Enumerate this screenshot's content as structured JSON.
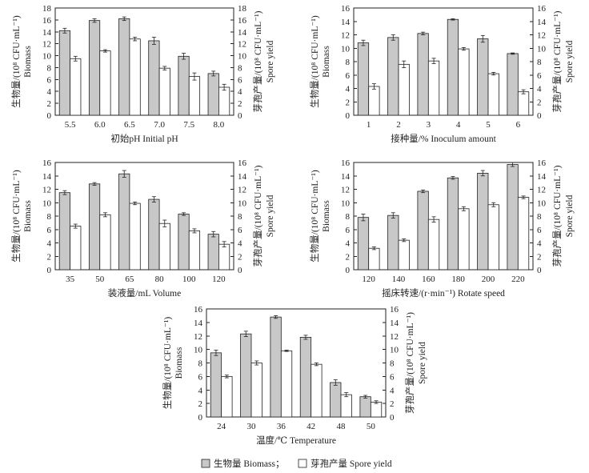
{
  "chart_data": [
    {
      "type": "bar",
      "categories": [
        "5.5",
        "6.0",
        "6.5",
        "7.0",
        "7.5",
        "8.0"
      ],
      "xlabel": "初始pH   Initial pH",
      "ylabel_cn": "生物量/(10⁸ CFU·mL⁻¹)",
      "ylabel_en": "Biomass",
      "y2label_cn": "芽孢产量/(10⁸ CFU·mL⁻¹)",
      "y2label_en": "Spore yield",
      "ylim": [
        0,
        18
      ],
      "yticks": [
        0,
        2,
        4,
        6,
        8,
        10,
        12,
        14,
        16,
        18
      ],
      "y2ticks": [
        0,
        2,
        4,
        6,
        8,
        10,
        12,
        14,
        16,
        18
      ],
      "series": [
        {
          "name": "Biomass",
          "values": [
            14.2,
            15.9,
            16.2,
            12.5,
            9.9,
            7.0
          ],
          "errors": [
            0.4,
            0.3,
            0.3,
            0.6,
            0.5,
            0.4
          ]
        },
        {
          "name": "Spore yield",
          "values": [
            9.5,
            10.8,
            12.8,
            7.9,
            6.5,
            4.7
          ],
          "errors": [
            0.4,
            0.2,
            0.3,
            0.3,
            0.6,
            0.5
          ]
        }
      ]
    },
    {
      "type": "bar",
      "categories": [
        "1",
        "2",
        "3",
        "4",
        "5",
        "6"
      ],
      "xlabel": "接种量/%   Inoculum amount",
      "ylabel_cn": "生物量/(10⁸ CFU·mL⁻¹)",
      "ylabel_en": "Biomass",
      "y2label_cn": "芽孢产量/(10⁸ CFU·mL⁻¹)",
      "y2label_en": "Spore yield",
      "ylim": [
        0,
        16
      ],
      "yticks": [
        0,
        2,
        4,
        6,
        8,
        10,
        12,
        14,
        16
      ],
      "y2ticks": [
        0,
        2,
        4,
        6,
        8,
        10,
        12,
        14,
        16
      ],
      "series": [
        {
          "name": "Biomass",
          "values": [
            10.8,
            11.6,
            12.2,
            14.3,
            11.4,
            9.2
          ],
          "errors": [
            0.4,
            0.4,
            0.2,
            0.1,
            0.5,
            0.1
          ]
        },
        {
          "name": "Spore yield",
          "values": [
            4.3,
            7.6,
            8.1,
            9.9,
            6.2,
            3.5
          ],
          "errors": [
            0.4,
            0.5,
            0.4,
            0.2,
            0.2,
            0.3
          ]
        }
      ]
    },
    {
      "type": "bar",
      "categories": [
        "35",
        "50",
        "65",
        "80",
        "100",
        "120"
      ],
      "xlabel": "装液量/mL   Volume",
      "ylabel_cn": "生物量/(10⁸ CFU·mL⁻¹)",
      "ylabel_en": "Biomass",
      "y2label_cn": "芽孢产量/(10⁸ CFU·mL⁻¹)",
      "y2label_en": "Spore yield",
      "ylim": [
        0,
        16
      ],
      "yticks": [
        0,
        2,
        4,
        6,
        8,
        10,
        12,
        14,
        16
      ],
      "y2ticks": [
        0,
        2,
        4,
        6,
        8,
        10,
        12,
        14,
        16
      ],
      "series": [
        {
          "name": "Biomass",
          "values": [
            11.5,
            12.8,
            14.3,
            10.5,
            8.3,
            5.3
          ],
          "errors": [
            0.3,
            0.2,
            0.5,
            0.4,
            0.2,
            0.4
          ]
        },
        {
          "name": "Spore yield",
          "values": [
            6.5,
            8.2,
            9.9,
            6.9,
            5.8,
            3.8
          ],
          "errors": [
            0.3,
            0.3,
            0.2,
            0.5,
            0.3,
            0.4
          ]
        }
      ]
    },
    {
      "type": "bar",
      "categories": [
        "120",
        "140",
        "160",
        "180",
        "200",
        "220"
      ],
      "xlabel": "摇床转速/(r·min⁻¹)   Rotate speed",
      "ylabel_cn": "生物量/(10⁸ CFU·mL⁻¹)",
      "ylabel_en": "Biomass",
      "y2label_cn": "芽孢产量/(10⁸ CFU·mL⁻¹)",
      "y2label_en": "Spore yield",
      "ylim": [
        0,
        16
      ],
      "yticks": [
        0,
        2,
        4,
        6,
        8,
        10,
        12,
        14,
        16
      ],
      "y2ticks": [
        0,
        2,
        4,
        6,
        8,
        10,
        12,
        14,
        16
      ],
      "series": [
        {
          "name": "Biomass",
          "values": [
            7.8,
            8.1,
            11.7,
            13.7,
            14.4,
            15.7
          ],
          "errors": [
            0.5,
            0.4,
            0.2,
            0.2,
            0.4,
            0.3
          ]
        },
        {
          "name": "Spore yield",
          "values": [
            3.2,
            4.4,
            7.5,
            9.1,
            9.7,
            10.8
          ],
          "errors": [
            0.2,
            0.2,
            0.4,
            0.3,
            0.3,
            0.2
          ]
        }
      ]
    },
    {
      "type": "bar",
      "categories": [
        "24",
        "30",
        "36",
        "42",
        "48",
        "50"
      ],
      "xlabel": "温度/℃   Temperature",
      "ylabel_cn": "生物量/(10⁸ CFU·mL⁻¹)",
      "ylabel_en": "Biomass",
      "y2label_cn": "芽孢产量/(10⁸ CFU·mL⁻¹)",
      "y2label_en": "Spore yield",
      "ylim": [
        0,
        16
      ],
      "yticks": [
        0,
        2,
        4,
        6,
        8,
        10,
        12,
        14,
        16
      ],
      "y2ticks": [
        0,
        2,
        4,
        6,
        8,
        10,
        12,
        14,
        16
      ],
      "series": [
        {
          "name": "Biomass",
          "values": [
            9.5,
            12.3,
            14.8,
            11.8,
            5.1,
            3.0
          ],
          "errors": [
            0.4,
            0.4,
            0.2,
            0.3,
            0.4,
            0.2
          ]
        },
        {
          "name": "Spore yield",
          "values": [
            6.0,
            8.0,
            9.8,
            7.8,
            3.3,
            2.2
          ],
          "errors": [
            0.2,
            0.3,
            0.1,
            0.2,
            0.3,
            0.2
          ]
        }
      ]
    }
  ],
  "legend": {
    "biomass": "生物量 Biomass；",
    "spore": "芽孢产量 Spore yield"
  }
}
